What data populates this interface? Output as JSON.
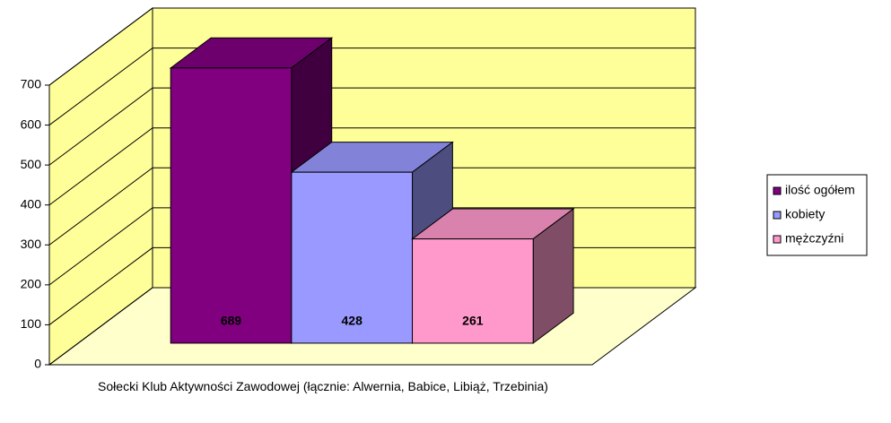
{
  "chart_data": {
    "type": "bar",
    "categories": [
      "Sołecki Klub Aktywności Zawodowej (łącznie: Alwernia, Babice, Libiąż, Trzebinia)"
    ],
    "series": [
      {
        "name": "ilość ogółem",
        "color": "#800080",
        "values": [
          689
        ]
      },
      {
        "name": "kobiety",
        "color": "#9999ff",
        "values": [
          428
        ]
      },
      {
        "name": "mężczyźni",
        "color": "#ff99cc",
        "values": [
          261
        ]
      }
    ],
    "ylim": [
      0,
      700
    ],
    "yticks": [
      0,
      100,
      200,
      300,
      400,
      500,
      600,
      700
    ],
    "grid": true,
    "legend": "right",
    "wall_color": "#ffff99",
    "floor_color": "#ffffcc"
  }
}
